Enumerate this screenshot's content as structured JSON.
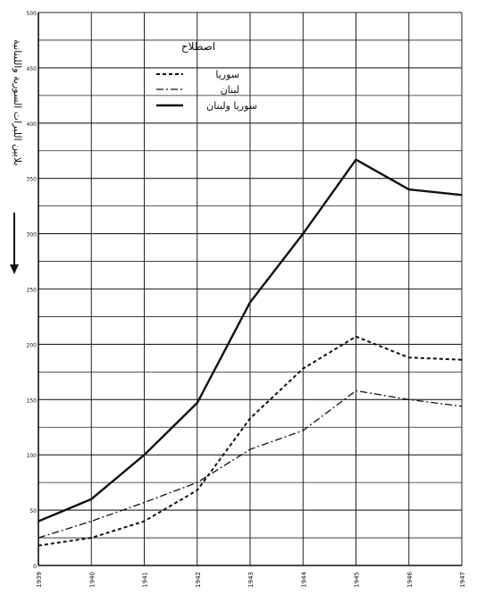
{
  "chart_data": {
    "type": "line",
    "title": "",
    "ylabel": "بلايين الليرات السورية واللبنانية",
    "xlabel": "",
    "x": [
      "1939",
      "1940",
      "1941",
      "1942",
      "1943",
      "1944",
      "1945",
      "1946",
      "1947"
    ],
    "ylim": [
      0,
      500
    ],
    "yticks": [
      "0",
      "50",
      "100",
      "150",
      "200",
      "250",
      "300",
      "350",
      "400",
      "450",
      "500"
    ],
    "grid": true,
    "legend": {
      "title": "اصطلاح",
      "position": "top-center",
      "entries": [
        "سوريا",
        "لبنان",
        "سوريا ولبنان"
      ]
    },
    "series": [
      {
        "name": "سوريا",
        "style": "dashed",
        "values": [
          18,
          25,
          40,
          68,
          133,
          178,
          207,
          188,
          186
        ]
      },
      {
        "name": "لبنان",
        "style": "dashdot",
        "values": [
          25,
          40,
          57,
          75,
          105,
          122,
          158,
          150,
          144
        ]
      },
      {
        "name": "سوريا ولبنان",
        "style": "solid",
        "values": [
          40,
          60,
          100,
          147,
          238,
          300,
          367,
          340,
          335
        ]
      }
    ],
    "colors": {
      "line": "#111111",
      "grid": "#222222"
    }
  }
}
